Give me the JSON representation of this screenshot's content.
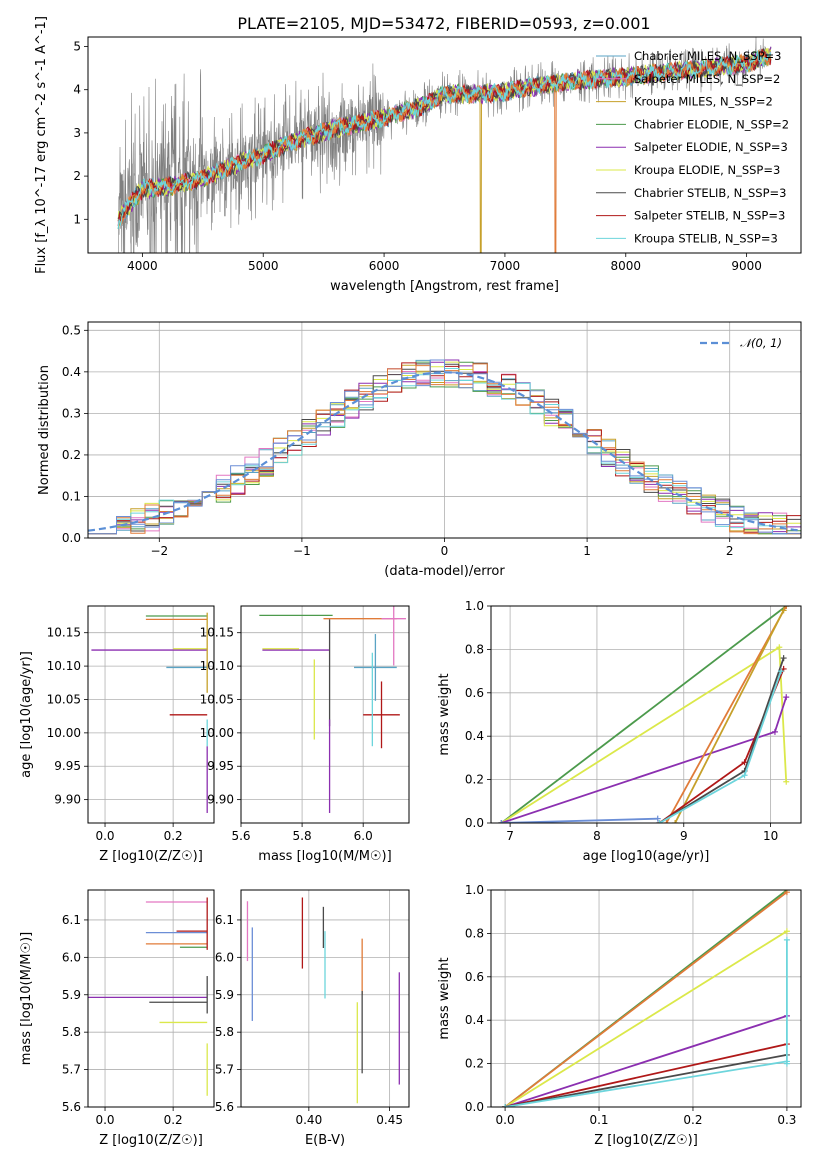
{
  "figure_title": "PLATE=2105, MJD=53472, FIBERID=0593, z=0.001",
  "colors": {
    "Chabrier MILES": "#5aa3c4",
    "Salpeter MILES": "#e377c2",
    "Kroupa MILES": "#c6a02a",
    "Chabrier ELODIE": "#4c9a4c",
    "Salpeter ELODIE": "#8b2fb0",
    "Kroupa ELODIE": "#dbe84a",
    "Chabrier STELIB": "#4a4a4a",
    "Salpeter STELIB": "#b01818",
    "Kroupa STELIB": "#6dd5dc",
    "data": "#808080",
    "orange": "#e07b39",
    "blue": "#6b8ed6",
    "gauss": "#5b8fd6"
  },
  "chart_data": [
    {
      "id": "spectrum",
      "type": "line",
      "title": "PLATE=2105, MJD=53472, FIBERID=0593, z=0.001",
      "xlabel": "wavelength [Angstrom, rest frame]",
      "ylabel": "Flux [f_λ 10^-17 erg cm^-2 s^-1 A^-1]",
      "xlim": [
        3550,
        9450
      ],
      "ylim": [
        0.22,
        5.22
      ],
      "xticks": [
        4000,
        5000,
        6000,
        7000,
        8000,
        9000
      ],
      "yticks": [
        1,
        2,
        3,
        4,
        5
      ],
      "grid": false,
      "legend_position": "right",
      "legend": [
        "Chabrier MILES, N_SSP=3",
        "Salpeter MILES, N_SSP=2",
        "Kroupa MILES, N_SSP=2",
        "Chabrier ELODIE, N_SSP=2",
        "Salpeter ELODIE, N_SSP=3",
        "Kroupa ELODIE, N_SSP=3",
        "Chabrier STELIB, N_SSP=3",
        "Salpeter STELIB, N_SSP=3",
        "Kroupa STELIB, N_SSP=3"
      ],
      "continuum": {
        "x": [
          3800,
          4000,
          4200,
          4500,
          4800,
          5000,
          5300,
          5600,
          6000,
          6300,
          6500,
          6800,
          7000,
          7300,
          7600,
          8000,
          8500,
          9000,
          9200
        ],
        "y": [
          1.0,
          1.7,
          1.75,
          1.95,
          2.3,
          2.5,
          2.85,
          3.1,
          3.35,
          3.6,
          3.9,
          3.9,
          3.95,
          4.1,
          4.2,
          4.3,
          4.45,
          4.6,
          4.8
        ]
      },
      "dips": [
        {
          "x": 6800,
          "series": "Kroupa MILES"
        },
        {
          "x": 7420,
          "series": "orange"
        }
      ]
    },
    {
      "id": "residuals",
      "type": "line",
      "xlabel": "(data-model)/error",
      "ylabel": "Normed distribution",
      "xlim": [
        -2.5,
        2.5
      ],
      "ylim": [
        0,
        0.52
      ],
      "xticks": [
        -2,
        -1,
        0,
        1,
        2
      ],
      "yticks": [
        0.0,
        0.1,
        0.2,
        0.3,
        0.4,
        0.5
      ],
      "grid": true,
      "legend_position": "top-right",
      "legend": [
        "𝒩(0, 1)"
      ],
      "gauss": {
        "mean": 0,
        "sigma": 1
      }
    },
    {
      "id": "age-vs-Z",
      "type": "scatter",
      "xlabel": "Z [log10(Z/Z☉)]",
      "ylabel": "age [log10(age/yr)]",
      "xlim": [
        -0.05,
        0.32
      ],
      "ylim": [
        9.865,
        10.19
      ],
      "xticks": [
        0.0,
        0.2
      ],
      "yticks": [
        9.9,
        9.95,
        10.0,
        10.05,
        10.1,
        10.15
      ],
      "grid": true,
      "errorbars": [
        {
          "x": 0.21,
          "y": 10.175,
          "xerr": 0.09,
          "color": "Chabrier ELODIE"
        },
        {
          "x": 0.21,
          "y": 10.17,
          "xerr": 0.09,
          "color": "orange"
        },
        {
          "x": 0.13,
          "y": 10.124,
          "xerr": 0.17,
          "color": "Salpeter ELODIE"
        },
        {
          "x": 0.25,
          "y": 10.126,
          "xerr": 0.05,
          "color": "Kroupa ELODIE"
        },
        {
          "x": 0.24,
          "y": 10.098,
          "xerr": 0.06,
          "color": "Chabrier MILES"
        },
        {
          "x": 0.245,
          "y": 10.027,
          "xerr": 0.055,
          "color": "Salpeter STELIB"
        },
        {
          "x": 0.3,
          "y": 10.12,
          "yerr": 0.06,
          "color": "Kroupa MILES"
        },
        {
          "x": 0.3,
          "y": 9.93,
          "yerr": 0.05,
          "color": "Salpeter ELODIE"
        },
        {
          "x": 0.3,
          "y": 10.0,
          "yerr": 0.02,
          "color": "Kroupa STELIB"
        }
      ]
    },
    {
      "id": "age-vs-mass",
      "type": "scatter",
      "xlabel": "mass [log10(M/M☉)]",
      "xlim": [
        5.6,
        6.15
      ],
      "ylim": [
        9.865,
        10.19
      ],
      "xticks": [
        5.6,
        5.8,
        6.0
      ],
      "yticks": [
        9.9,
        9.95,
        10.0,
        10.05,
        10.1,
        10.15
      ],
      "grid": true,
      "errorbars": [
        {
          "x": 5.78,
          "y": 10.176,
          "xerr": 0.12,
          "color": "Chabrier ELODIE"
        },
        {
          "x": 5.99,
          "y": 10.171,
          "xerr": 0.12,
          "color": "orange"
        },
        {
          "x": 6.1,
          "y": 10.171,
          "xerr": 0.04,
          "yerr": 0.07,
          "color": "Salpeter MILES"
        },
        {
          "x": 5.78,
          "y": 10.124,
          "xerr": 0.11,
          "color": "Salpeter ELODIE"
        },
        {
          "x": 5.73,
          "y": 10.126,
          "xerr": 0.06,
          "color": "Kroupa ELODIE"
        },
        {
          "x": 5.89,
          "y": 10.09,
          "yerr": 0.08,
          "color": "Chabrier STELIB"
        },
        {
          "x": 5.84,
          "y": 10.05,
          "yerr": 0.06,
          "color": "Kroupa ELODIE"
        },
        {
          "x": 5.89,
          "y": 9.95,
          "yerr": 0.07,
          "color": "Salpeter ELODIE"
        },
        {
          "x": 6.04,
          "y": 10.098,
          "xerr": 0.07,
          "yerr": 0.05,
          "color": "Chabrier MILES"
        },
        {
          "x": 6.06,
          "y": 10.027,
          "xerr": 0.06,
          "yerr": 0.05,
          "color": "Salpeter STELIB"
        },
        {
          "x": 6.03,
          "y": 10.05,
          "yerr": 0.07,
          "color": "Kroupa STELIB"
        }
      ]
    },
    {
      "id": "massweight-vs-age",
      "type": "line",
      "xlabel": "age [log10(age/yr)]",
      "ylabel": "mass weight",
      "xlim": [
        6.78,
        10.35
      ],
      "ylim": [
        0,
        1
      ],
      "xticks": [
        7,
        8,
        9,
        10
      ],
      "yticks": [
        0.0,
        0.2,
        0.4,
        0.6,
        0.8,
        1.0
      ],
      "grid": true,
      "series": [
        {
          "name": "Chabrier ELODIE",
          "x": [
            6.9,
            10.18
          ],
          "y": [
            0.0,
            1.0
          ]
        },
        {
          "name": "Kroupa ELODIE",
          "x": [
            6.9,
            10.1,
            10.18
          ],
          "y": [
            0.0,
            0.81,
            0.19
          ]
        },
        {
          "name": "Salpeter ELODIE",
          "x": [
            6.9,
            10.05,
            10.18
          ],
          "y": [
            0.0,
            0.42,
            0.58
          ]
        },
        {
          "name": "orange",
          "x": [
            8.8,
            10.18
          ],
          "y": [
            0.0,
            1.0
          ]
        },
        {
          "name": "Kroupa MILES",
          "x": [
            8.9,
            10.15
          ],
          "y": [
            0.0,
            0.98
          ]
        },
        {
          "name": "Salpeter STELIB",
          "x": [
            8.72,
            9.7,
            10.15
          ],
          "y": [
            0.0,
            0.28,
            0.71
          ]
        },
        {
          "name": "Chabrier STELIB",
          "x": [
            8.72,
            9.7,
            10.15
          ],
          "y": [
            0.0,
            0.24,
            0.76
          ]
        },
        {
          "name": "Kroupa STELIB",
          "x": [
            8.72,
            9.7,
            10.12
          ],
          "y": [
            0.0,
            0.22,
            0.7
          ]
        },
        {
          "name": "blue",
          "x": [
            6.9,
            8.7
          ],
          "y": [
            0.0,
            0.02
          ]
        }
      ]
    },
    {
      "id": "mass-vs-Z",
      "type": "scatter",
      "xlabel": "Z [log10(Z/Z☉)]",
      "ylabel": "mass [log10(M/M☉)]",
      "xlim": [
        -0.05,
        0.32
      ],
      "ylim": [
        5.6,
        6.18
      ],
      "xticks": [
        0.0,
        0.2
      ],
      "yticks": [
        5.6,
        5.7,
        5.8,
        5.9,
        6.0,
        6.1
      ],
      "grid": true,
      "errorbars": [
        {
          "x": 0.21,
          "y": 6.148,
          "xerr": 0.09,
          "color": "Salpeter MILES"
        },
        {
          "x": 0.21,
          "y": 6.066,
          "xerr": 0.09,
          "color": "blue"
        },
        {
          "x": 0.255,
          "y": 6.07,
          "xerr": 0.045,
          "color": "Salpeter STELIB"
        },
        {
          "x": 0.21,
          "y": 6.036,
          "xerr": 0.09,
          "color": "orange"
        },
        {
          "x": 0.26,
          "y": 6.027,
          "xerr": 0.04,
          "color": "Chabrier ELODIE"
        },
        {
          "x": 0.125,
          "y": 5.893,
          "xerr": 0.175,
          "color": "Salpeter ELODIE"
        },
        {
          "x": 0.215,
          "y": 5.88,
          "xerr": 0.085,
          "color": "Chabrier STELIB"
        },
        {
          "x": 0.23,
          "y": 5.826,
          "xerr": 0.07,
          "color": "Kroupa ELODIE"
        },
        {
          "x": 0.3,
          "y": 6.09,
          "yerr": 0.07,
          "color": "Salpeter STELIB"
        },
        {
          "x": 0.3,
          "y": 5.9,
          "yerr": 0.05,
          "color": "Chabrier STELIB"
        },
        {
          "x": 0.3,
          "y": 5.7,
          "yerr": 0.07,
          "color": "Kroupa ELODIE"
        }
      ]
    },
    {
      "id": "mass-vs-EBV",
      "type": "scatter",
      "xlabel": "E(B-V)",
      "xlim": [
        0.358,
        0.462
      ],
      "ylim": [
        5.6,
        6.18
      ],
      "xticks": [
        0.4,
        0.45
      ],
      "yticks": [
        5.6,
        5.7,
        5.8,
        5.9,
        6.0,
        6.1
      ],
      "grid": true,
      "errorbars": [
        {
          "x": 0.362,
          "y": 6.07,
          "yerr": 0.08,
          "color": "Salpeter MILES"
        },
        {
          "x": 0.365,
          "y": 5.955,
          "yerr": 0.125,
          "color": "blue"
        },
        {
          "x": 0.396,
          "y": 6.065,
          "yerr": 0.095,
          "color": "Salpeter STELIB"
        },
        {
          "x": 0.409,
          "y": 6.08,
          "yerr": 0.055,
          "color": "Chabrier STELIB"
        },
        {
          "x": 0.41,
          "y": 5.98,
          "yerr": 0.09,
          "color": "Kroupa STELIB"
        },
        {
          "x": 0.433,
          "y": 5.975,
          "yerr": 0.075,
          "color": "orange"
        },
        {
          "x": 0.433,
          "y": 5.8,
          "yerr": 0.11,
          "color": "Chabrier STELIB"
        },
        {
          "x": 0.43,
          "y": 5.745,
          "yerr": 0.135,
          "color": "Kroupa ELODIE"
        },
        {
          "x": 0.456,
          "y": 5.81,
          "yerr": 0.15,
          "color": "Salpeter ELODIE"
        }
      ]
    },
    {
      "id": "massweight-vs-Z",
      "type": "line",
      "xlabel": "Z [log10(Z/Z☉)]",
      "ylabel": "mass weight",
      "xlim": [
        -0.015,
        0.315
      ],
      "ylim": [
        0,
        1
      ],
      "xticks": [
        0.0,
        0.1,
        0.2,
        0.3
      ],
      "yticks": [
        0.0,
        0.2,
        0.4,
        0.6,
        0.8,
        1.0
      ],
      "grid": true,
      "series": [
        {
          "name": "Chabrier ELODIE",
          "x": [
            0.0,
            0.3
          ],
          "y": [
            0.0,
            1.0
          ]
        },
        {
          "name": "orange",
          "x": [
            0.0,
            0.3
          ],
          "y": [
            0.0,
            0.99
          ]
        },
        {
          "name": "Kroupa ELODIE",
          "x": [
            0.0,
            0.3
          ],
          "y": [
            0.0,
            0.81
          ]
        },
        {
          "name": "Salpeter ELODIE",
          "x": [
            0.0,
            0.3
          ],
          "y": [
            0.0,
            0.42
          ]
        },
        {
          "name": "Salpeter STELIB",
          "x": [
            0.0,
            0.3
          ],
          "y": [
            0.0,
            0.29
          ]
        },
        {
          "name": "Chabrier STELIB",
          "x": [
            0.0,
            0.3
          ],
          "y": [
            0.0,
            0.24
          ]
        },
        {
          "name": "Kroupa STELIB",
          "x": [
            0.0,
            0.3
          ],
          "y": [
            0.0,
            0.21
          ]
        },
        {
          "name": "Kroupa STELIB",
          "x": [
            0.3,
            0.3
          ],
          "y": [
            0.2,
            0.77
          ]
        }
      ]
    }
  ]
}
